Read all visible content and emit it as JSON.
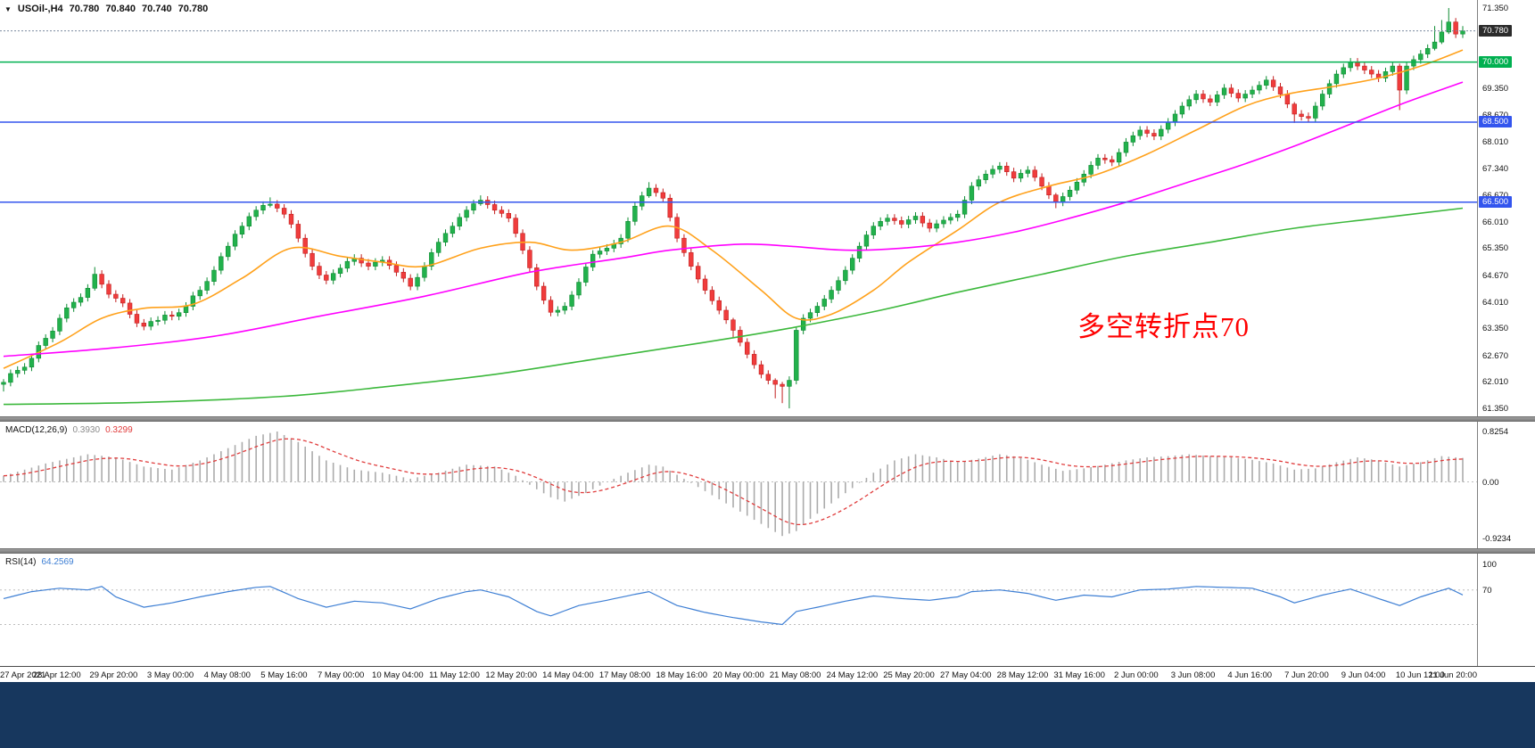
{
  "header": {
    "marker": "▼",
    "symbol": "USOil-,H4",
    "open": "70.780",
    "high": "70.840",
    "low": "70.740",
    "close": "70.780"
  },
  "annotation": {
    "text": "多空转折点70",
    "color": "#ff0000"
  },
  "indicators": {
    "macd": {
      "label": "MACD(12,26,9)",
      "value_main": "0.3930",
      "value_signal": "0.3299",
      "scale_labels": [
        {
          "text": "0.8254",
          "value": 0.8254
        },
        {
          "text": "0.00",
          "value": 0
        },
        {
          "text": "-0.9234",
          "value": -0.9234
        }
      ]
    },
    "rsi": {
      "label": "RSI(14)",
      "value": "64.2569",
      "scale_labels": [
        {
          "text": "100",
          "value": 100
        },
        {
          "text": "70",
          "value": 70
        }
      ]
    }
  },
  "price_scale": {
    "labels": [
      {
        "text": "71.350",
        "price": 71.35
      },
      {
        "text": "69.350",
        "price": 69.35
      },
      {
        "text": "68.670",
        "price": 68.67
      },
      {
        "text": "68.010",
        "price": 68.01
      },
      {
        "text": "67.340",
        "price": 67.34
      },
      {
        "text": "66.670",
        "price": 66.67
      },
      {
        "text": "66.010",
        "price": 66.01
      },
      {
        "text": "65.350",
        "price": 65.35
      },
      {
        "text": "64.670",
        "price": 64.67
      },
      {
        "text": "64.010",
        "price": 64.01
      },
      {
        "text": "63.350",
        "price": 63.35
      },
      {
        "text": "62.670",
        "price": 62.67
      },
      {
        "text": "62.010",
        "price": 62.01
      },
      {
        "text": "61.350",
        "price": 61.35
      }
    ],
    "badges": [
      {
        "text": "70.780",
        "price": 70.78,
        "bg": "#2b2b2b"
      },
      {
        "text": "70.000",
        "price": 70.0,
        "bg": "#00b050"
      },
      {
        "text": "68.500",
        "price": 68.5,
        "bg": "#3355ee"
      },
      {
        "text": "66.500",
        "price": 66.5,
        "bg": "#3355ee"
      }
    ]
  },
  "colors": {
    "bull": "#22b14c",
    "bull_stroke": "#0e8c33",
    "bear": "#f03c3c",
    "bear_stroke": "#c21f1f",
    "macd_hist": "#ababab",
    "macd_signal": "#e03c3c",
    "rsi_line": "#3e7fd4",
    "indicator_level": "#bdbdbd",
    "bid_line": "#7a8aa0",
    "bottom_bar": "#17375e"
  },
  "chart_data": {
    "type": "candlestick",
    "symbol": "USOil-",
    "timeframe": "H4",
    "ylim": [
      61.15,
      71.55
    ],
    "open_first": 61.95,
    "default_wick": 0.1,
    "closes": [
      62.0,
      62.22,
      62.3,
      62.38,
      62.6,
      62.92,
      63.1,
      63.28,
      63.6,
      63.86,
      64.0,
      64.12,
      64.35,
      64.7,
      64.45,
      64.2,
      64.1,
      63.98,
      63.7,
      63.48,
      63.4,
      63.52,
      63.55,
      63.68,
      63.65,
      63.74,
      63.9,
      64.16,
      64.3,
      64.52,
      64.8,
      65.14,
      65.4,
      65.7,
      65.9,
      66.14,
      66.3,
      66.42,
      66.45,
      66.35,
      66.2,
      65.95,
      65.6,
      65.22,
      64.9,
      64.68,
      64.55,
      64.72,
      64.85,
      65.02,
      65.1,
      64.98,
      64.9,
      65.0,
      65.05,
      64.92,
      64.75,
      64.6,
      64.4,
      64.62,
      64.9,
      65.24,
      65.5,
      65.72,
      65.9,
      66.12,
      66.3,
      66.46,
      66.55,
      66.44,
      66.3,
      66.22,
      66.1,
      65.72,
      65.3,
      64.86,
      64.4,
      64.05,
      63.75,
      63.8,
      63.9,
      64.18,
      64.5,
      64.88,
      65.2,
      65.28,
      65.35,
      65.46,
      65.6,
      66.02,
      66.4,
      66.66,
      66.85,
      66.74,
      66.6,
      66.12,
      65.6,
      65.24,
      64.9,
      64.58,
      64.3,
      64.04,
      63.8,
      63.56,
      63.3,
      63.0,
      62.7,
      62.44,
      62.2,
      62.05,
      61.95,
      61.9,
      62.05,
      63.3,
      63.6,
      63.74,
      63.9,
      64.08,
      64.3,
      64.54,
      64.8,
      65.1,
      65.4,
      65.68,
      65.9,
      66.02,
      66.1,
      66.04,
      65.95,
      66.06,
      66.15,
      65.98,
      65.85,
      65.96,
      66.05,
      66.12,
      66.2,
      66.55,
      66.9,
      67.06,
      67.2,
      67.32,
      67.4,
      67.26,
      67.1,
      67.22,
      67.3,
      67.12,
      66.9,
      66.68,
      66.5,
      66.64,
      66.8,
      67.0,
      67.2,
      67.42,
      67.6,
      67.56,
      67.5,
      67.74,
      68.0,
      68.16,
      68.3,
      68.22,
      68.15,
      68.32,
      68.5,
      68.7,
      68.9,
      69.06,
      69.2,
      69.08,
      69.0,
      69.18,
      69.35,
      69.22,
      69.1,
      69.2,
      69.3,
      69.42,
      69.55,
      69.38,
      69.2,
      68.95,
      68.7,
      68.64,
      68.6,
      68.9,
      69.2,
      69.46,
      69.7,
      69.86,
      70.0,
      69.9,
      69.8,
      69.7,
      69.6,
      69.76,
      69.9,
      69.3,
      69.9,
      70.06,
      70.2,
      70.34,
      70.5,
      70.75,
      71.0,
      70.7,
      70.78
    ],
    "wick_overrides": {
      "0": [
        0.08,
        0.18
      ],
      "13": [
        0.18,
        0.06
      ],
      "38": [
        0.17,
        0.05
      ],
      "68": [
        0.12,
        0.05
      ],
      "92": [
        0.15,
        0.05
      ],
      "104": [
        0.05,
        0.2
      ],
      "110": [
        0.05,
        0.35
      ],
      "111": [
        0.06,
        0.42
      ],
      "112": [
        0.1,
        0.55
      ],
      "150": [
        0.05,
        0.15
      ],
      "184": [
        0.05,
        0.22
      ],
      "199": [
        0.06,
        0.5
      ],
      "204": [
        0.4,
        0.05
      ],
      "205": [
        0.3,
        0.05
      ],
      "206": [
        0.35,
        0.05
      ],
      "208": [
        0.12,
        0.1
      ]
    },
    "levels": [
      {
        "price": 70.0,
        "color": "#00b050",
        "style": "solid"
      },
      {
        "price": 68.5,
        "color": "#3355ee",
        "style": "solid"
      },
      {
        "price": 66.5,
        "color": "#3355ee",
        "style": "solid"
      }
    ],
    "bid_price": 70.78,
    "moving_averages": [
      {
        "name": "ma-fast-orange",
        "color": "#ffa11b",
        "points": [
          [
            0,
            62.35
          ],
          [
            8,
            63.0
          ],
          [
            14,
            63.6
          ],
          [
            20,
            63.85
          ],
          [
            27,
            63.95
          ],
          [
            34,
            64.6
          ],
          [
            41,
            65.35
          ],
          [
            48,
            65.15
          ],
          [
            54,
            65.0
          ],
          [
            60,
            64.9
          ],
          [
            68,
            65.35
          ],
          [
            75,
            65.5
          ],
          [
            81,
            65.3
          ],
          [
            88,
            65.5
          ],
          [
            95,
            65.9
          ],
          [
            101,
            65.3
          ],
          [
            108,
            64.3
          ],
          [
            113,
            63.6
          ],
          [
            118,
            63.7
          ],
          [
            124,
            64.3
          ],
          [
            129,
            65.0
          ],
          [
            136,
            65.8
          ],
          [
            142,
            66.5
          ],
          [
            149,
            66.9
          ],
          [
            156,
            67.2
          ],
          [
            163,
            67.7
          ],
          [
            170,
            68.3
          ],
          [
            177,
            68.9
          ],
          [
            183,
            69.2
          ],
          [
            190,
            69.4
          ],
          [
            196,
            69.6
          ],
          [
            202,
            69.9
          ],
          [
            208,
            70.3
          ]
        ]
      },
      {
        "name": "ma-mid-magenta",
        "color": "#ff00ff",
        "points": [
          [
            0,
            62.65
          ],
          [
            15,
            62.85
          ],
          [
            30,
            63.15
          ],
          [
            45,
            63.65
          ],
          [
            60,
            64.15
          ],
          [
            75,
            64.75
          ],
          [
            88,
            65.1
          ],
          [
            95,
            65.3
          ],
          [
            105,
            65.45
          ],
          [
            112,
            65.4
          ],
          [
            120,
            65.3
          ],
          [
            128,
            65.35
          ],
          [
            136,
            65.5
          ],
          [
            144,
            65.75
          ],
          [
            152,
            66.1
          ],
          [
            160,
            66.5
          ],
          [
            168,
            66.95
          ],
          [
            176,
            67.4
          ],
          [
            184,
            67.9
          ],
          [
            192,
            68.45
          ],
          [
            200,
            69.0
          ],
          [
            208,
            69.5
          ]
        ]
      },
      {
        "name": "ma-slow-green",
        "color": "#3cb83c",
        "points": [
          [
            0,
            61.45
          ],
          [
            20,
            61.5
          ],
          [
            40,
            61.65
          ],
          [
            55,
            61.9
          ],
          [
            70,
            62.2
          ],
          [
            85,
            62.6
          ],
          [
            100,
            63.0
          ],
          [
            112,
            63.35
          ],
          [
            125,
            63.8
          ],
          [
            136,
            64.25
          ],
          [
            148,
            64.7
          ],
          [
            160,
            65.15
          ],
          [
            172,
            65.5
          ],
          [
            184,
            65.85
          ],
          [
            196,
            66.1
          ],
          [
            208,
            66.35
          ]
        ]
      }
    ],
    "macd": {
      "ylim": [
        -1.08,
        0.98
      ],
      "anchors": [
        [
          0,
          0.1
        ],
        [
          6,
          0.3
        ],
        [
          12,
          0.45
        ],
        [
          16,
          0.4
        ],
        [
          20,
          0.25
        ],
        [
          24,
          0.2
        ],
        [
          28,
          0.35
        ],
        [
          32,
          0.55
        ],
        [
          36,
          0.75
        ],
        [
          39,
          0.82
        ],
        [
          42,
          0.65
        ],
        [
          46,
          0.35
        ],
        [
          50,
          0.2
        ],
        [
          54,
          0.15
        ],
        [
          58,
          0.05
        ],
        [
          62,
          0.15
        ],
        [
          66,
          0.28
        ],
        [
          70,
          0.25
        ],
        [
          73,
          0.1
        ],
        [
          76,
          -0.12
        ],
        [
          78,
          -0.25
        ],
        [
          80,
          -0.32
        ],
        [
          83,
          -0.18
        ],
        [
          86,
          0.0
        ],
        [
          89,
          0.15
        ],
        [
          92,
          0.28
        ],
        [
          94,
          0.25
        ],
        [
          97,
          0.05
        ],
        [
          100,
          -0.15
        ],
        [
          103,
          -0.35
        ],
        [
          106,
          -0.55
        ],
        [
          109,
          -0.75
        ],
        [
          111,
          -0.88
        ],
        [
          113,
          -0.8
        ],
        [
          115,
          -0.6
        ],
        [
          118,
          -0.35
        ],
        [
          121,
          -0.1
        ],
        [
          124,
          0.15
        ],
        [
          127,
          0.35
        ],
        [
          130,
          0.45
        ],
        [
          133,
          0.4
        ],
        [
          136,
          0.32
        ],
        [
          139,
          0.38
        ],
        [
          142,
          0.45
        ],
        [
          145,
          0.4
        ],
        [
          148,
          0.28
        ],
        [
          151,
          0.18
        ],
        [
          154,
          0.22
        ],
        [
          157,
          0.28
        ],
        [
          160,
          0.35
        ],
        [
          163,
          0.4
        ],
        [
          166,
          0.42
        ],
        [
          169,
          0.45
        ],
        [
          172,
          0.42
        ],
        [
          175,
          0.4
        ],
        [
          178,
          0.36
        ],
        [
          181,
          0.3
        ],
        [
          184,
          0.2
        ],
        [
          187,
          0.22
        ],
        [
          190,
          0.32
        ],
        [
          193,
          0.4
        ],
        [
          196,
          0.35
        ],
        [
          199,
          0.25
        ],
        [
          202,
          0.32
        ],
        [
          205,
          0.42
        ],
        [
          208,
          0.39
        ]
      ]
    },
    "rsi": {
      "ylim": [
        -18,
        112
      ],
      "level_lines": [
        70,
        30
      ],
      "anchors": [
        [
          0,
          60
        ],
        [
          4,
          68
        ],
        [
          8,
          72
        ],
        [
          12,
          70
        ],
        [
          14,
          74
        ],
        [
          16,
          62
        ],
        [
          20,
          50
        ],
        [
          24,
          55
        ],
        [
          28,
          62
        ],
        [
          32,
          68
        ],
        [
          36,
          73
        ],
        [
          38,
          74
        ],
        [
          42,
          60
        ],
        [
          46,
          50
        ],
        [
          50,
          57
        ],
        [
          54,
          55
        ],
        [
          58,
          48
        ],
        [
          62,
          60
        ],
        [
          66,
          68
        ],
        [
          68,
          70
        ],
        [
          72,
          62
        ],
        [
          76,
          45
        ],
        [
          78,
          40
        ],
        [
          82,
          52
        ],
        [
          86,
          58
        ],
        [
          90,
          65
        ],
        [
          92,
          68
        ],
        [
          96,
          52
        ],
        [
          100,
          44
        ],
        [
          104,
          38
        ],
        [
          108,
          33
        ],
        [
          111,
          30
        ],
        [
          113,
          45
        ],
        [
          116,
          50
        ],
        [
          120,
          57
        ],
        [
          124,
          63
        ],
        [
          128,
          60
        ],
        [
          132,
          58
        ],
        [
          136,
          62
        ],
        [
          138,
          68
        ],
        [
          142,
          70
        ],
        [
          146,
          66
        ],
        [
          150,
          58
        ],
        [
          154,
          64
        ],
        [
          158,
          62
        ],
        [
          162,
          70
        ],
        [
          166,
          71
        ],
        [
          170,
          74
        ],
        [
          174,
          73
        ],
        [
          178,
          72
        ],
        [
          182,
          62
        ],
        [
          184,
          55
        ],
        [
          188,
          64
        ],
        [
          192,
          71
        ],
        [
          196,
          60
        ],
        [
          199,
          52
        ],
        [
          202,
          62
        ],
        [
          206,
          72
        ],
        [
          208,
          64.26
        ]
      ]
    },
    "x_tick_labels": [
      "27 Apr 2021",
      "28 Apr 12:00",
      "29 Apr 20:00",
      "3 May 00:00",
      "4 May 08:00",
      "5 May 16:00",
      "7 May 00:00",
      "10 May 04:00",
      "11 May 12:00",
      "12 May 20:00",
      "14 May 04:00",
      "17 May 08:00",
      "18 May 16:00",
      "20 May 00:00",
      "21 May 08:00",
      "24 May 12:00",
      "25 May 20:00",
      "27 May 04:00",
      "28 May 12:00",
      "31 May 16:00",
      "2 Jun 00:00",
      "3 Jun 08:00",
      "4 Jun 16:00",
      "7 Jun 20:00",
      "9 Jun 04:00",
      "10 Jun 12:00",
      "11 Jun 20:00"
    ]
  }
}
